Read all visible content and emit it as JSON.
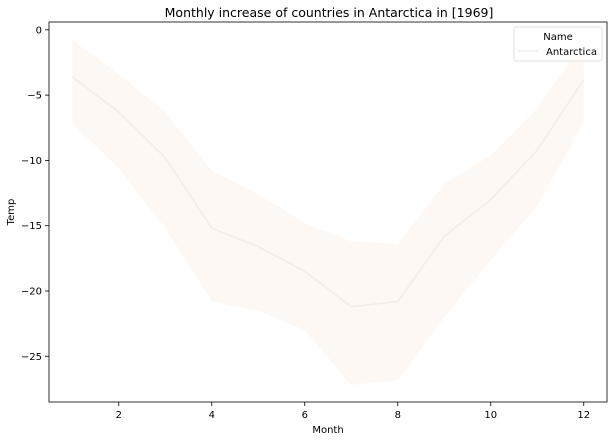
{
  "chart_data": {
    "type": "line",
    "title": "Monthly increase of countries in Antarctica in [1969]",
    "xlabel": "Month",
    "ylabel": "Temp",
    "xlim": [
      0.5,
      12.5
    ],
    "ylim": [
      -28.5,
      0.6
    ],
    "x_ticks": [
      2,
      4,
      6,
      8,
      10,
      12
    ],
    "y_ticks": [
      0,
      -5,
      -10,
      -15,
      -20,
      -25
    ],
    "grid": false,
    "legend": {
      "title": "Name",
      "placement": "top-right",
      "entries": [
        "Antarctica"
      ]
    },
    "series": [
      {
        "name": "Antarctica",
        "color": "#f3ece8",
        "band_color": "#fdf8f4",
        "x": [
          1,
          2,
          3,
          4,
          5,
          6,
          7,
          8,
          9,
          10,
          11,
          12
        ],
        "y": [
          -3.6,
          -6.3,
          -9.8,
          -15.2,
          -16.6,
          -18.5,
          -21.2,
          -20.8,
          -15.8,
          -13.0,
          -9.2,
          -3.8
        ],
        "y_lower": [
          -7.2,
          -10.6,
          -15.2,
          -20.8,
          -21.5,
          -23.0,
          -27.2,
          -26.8,
          -22.0,
          -17.6,
          -13.5,
          -7.0
        ],
        "y_upper": [
          -0.8,
          -3.4,
          -6.3,
          -10.8,
          -12.6,
          -14.8,
          -16.2,
          -16.4,
          -11.8,
          -9.6,
          -6.0,
          -0.8
        ]
      }
    ]
  }
}
